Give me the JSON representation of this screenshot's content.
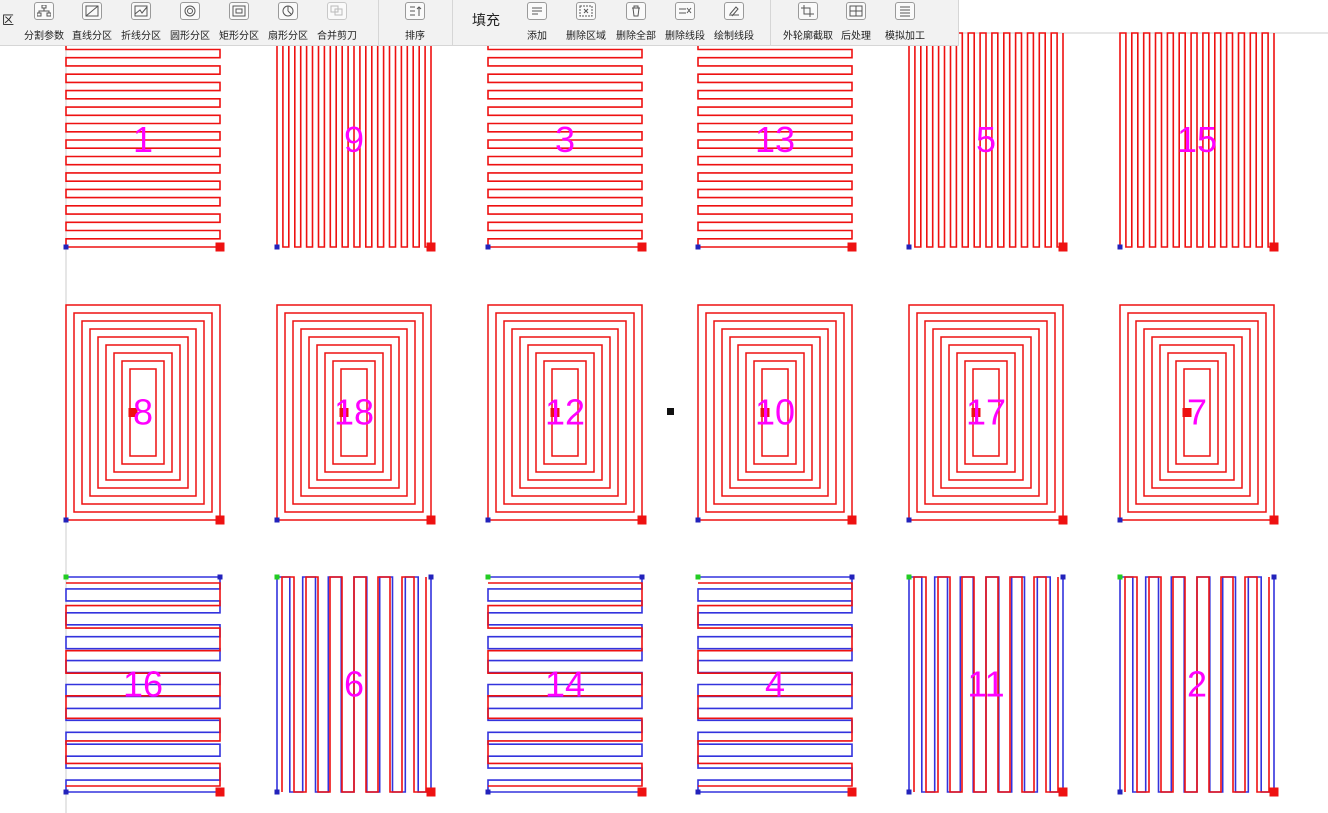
{
  "toolbar": {
    "partial_left_label": "区",
    "buttons": [
      {
        "id": "split-params",
        "label": "分割参数",
        "icon": "split-params-icon"
      },
      {
        "id": "line-partition",
        "label": "直线分区",
        "icon": "line-partition-icon"
      },
      {
        "id": "polyline-partition",
        "label": "折线分区",
        "icon": "polyline-partition-icon"
      },
      {
        "id": "circle-partition",
        "label": "圆形分区",
        "icon": "circle-partition-icon"
      },
      {
        "id": "rect-partition",
        "label": "矩形分区",
        "icon": "rect-partition-icon"
      },
      {
        "id": "fan-partition",
        "label": "扇形分区",
        "icon": "fan-partition-icon"
      },
      {
        "id": "merge-cutter",
        "label": "合并剪刀",
        "icon": "merge-cutter-icon"
      },
      {
        "id": "sort",
        "label": "排序",
        "icon": "sort-icon"
      },
      {
        "id": "add",
        "label": "添加",
        "icon": "add-icon"
      },
      {
        "id": "delete-region",
        "label": "删除区域",
        "icon": "delete-region-icon"
      },
      {
        "id": "delete-all",
        "label": "删除全部",
        "icon": "delete-all-icon"
      },
      {
        "id": "delete-segment",
        "label": "删除线段",
        "icon": "delete-segment-icon"
      },
      {
        "id": "draw-segment",
        "label": "绘制线段",
        "icon": "draw-segment-icon"
      },
      {
        "id": "outline-crop",
        "label": "外轮廓截取",
        "icon": "crop-icon"
      },
      {
        "id": "post-process",
        "label": "后处理",
        "icon": "post-process-icon"
      },
      {
        "id": "simulate",
        "label": "模拟加工",
        "icon": "simulate-icon"
      }
    ],
    "fill_label": "填充"
  },
  "colors": {
    "path": "#ee1111",
    "blue_path": "#3333dd",
    "label": "#ff00ff",
    "start_marker": "#ee1111",
    "green_marker": "#22cc22",
    "blue_marker": "#2222bb",
    "black_marker": "#111111"
  },
  "regions": [
    {
      "id": "1",
      "row": 0,
      "col": 0,
      "pattern": "hlines"
    },
    {
      "id": "9",
      "row": 0,
      "col": 1,
      "pattern": "vlines"
    },
    {
      "id": "3",
      "row": 0,
      "col": 2,
      "pattern": "hlines"
    },
    {
      "id": "13",
      "row": 0,
      "col": 3,
      "pattern": "hlines"
    },
    {
      "id": "5",
      "row": 0,
      "col": 4,
      "pattern": "vlines"
    },
    {
      "id": "15",
      "row": 0,
      "col": 5,
      "pattern": "vlines"
    },
    {
      "id": "8",
      "row": 1,
      "col": 0,
      "pattern": "spiral"
    },
    {
      "id": "18",
      "row": 1,
      "col": 1,
      "pattern": "spiral"
    },
    {
      "id": "12",
      "row": 1,
      "col": 2,
      "pattern": "spiral"
    },
    {
      "id": "10",
      "row": 1,
      "col": 3,
      "pattern": "spiral"
    },
    {
      "id": "17",
      "row": 1,
      "col": 4,
      "pattern": "spiral"
    },
    {
      "id": "7",
      "row": 1,
      "col": 5,
      "pattern": "spiral"
    },
    {
      "id": "16",
      "row": 2,
      "col": 0,
      "pattern": "hlines-blue"
    },
    {
      "id": "6",
      "row": 2,
      "col": 1,
      "pattern": "vlines-blue"
    },
    {
      "id": "14",
      "row": 2,
      "col": 2,
      "pattern": "hlines-blue"
    },
    {
      "id": "4",
      "row": 2,
      "col": 3,
      "pattern": "hlines-blue"
    },
    {
      "id": "11",
      "row": 2,
      "col": 4,
      "pattern": "vlines-blue"
    },
    {
      "id": "2",
      "row": 2,
      "col": 5,
      "pattern": "vlines-blue"
    }
  ]
}
